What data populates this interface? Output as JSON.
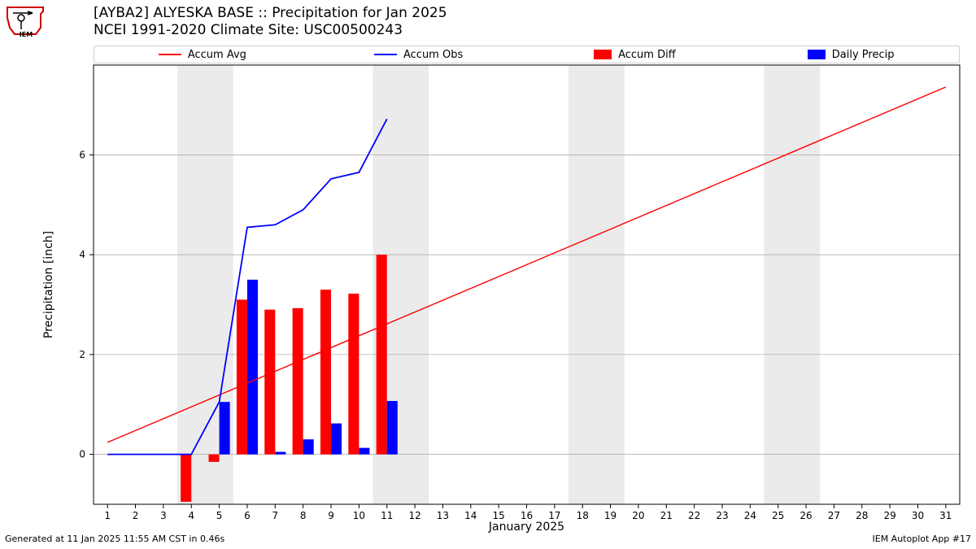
{
  "title_line1": "[AYBA2] ALYESKA BASE :: Precipitation for Jan 2025",
  "title_line2": "NCEI 1991-2020 Climate Site: USC00500243",
  "footer_left": "Generated at 11 Jan 2025 11:55 AM CST in 0.46s",
  "footer_right": "IEM Autoplot App #17",
  "ylabel": "Precipitation [inch]",
  "xlabel": "January 2025",
  "legend": {
    "accum_avg": "Accum Avg",
    "accum_obs": "Accum Obs",
    "accum_diff": "Accum Diff",
    "daily_precip": "Daily Precip"
  },
  "chart": {
    "type": "combo-bar-line",
    "plot_bg": "#ffffff",
    "weekend_bg": "#ebebeb",
    "grid_color": "#b0b0b0",
    "axis_color": "#000000",
    "text_color": "#000000",
    "tick_fontsize": 12,
    "label_fontsize": 14,
    "x": {
      "min": 0.5,
      "max": 31.5,
      "ticks": [
        1,
        2,
        3,
        4,
        5,
        6,
        7,
        8,
        9,
        10,
        11,
        12,
        13,
        14,
        15,
        16,
        17,
        18,
        19,
        20,
        21,
        22,
        23,
        24,
        25,
        26,
        27,
        28,
        29,
        30,
        31
      ]
    },
    "y": {
      "min": -1.0,
      "max": 7.8,
      "ticks": [
        0,
        2,
        4,
        6
      ]
    },
    "weekend_bands": [
      [
        3.5,
        5.5
      ],
      [
        10.5,
        12.5
      ],
      [
        17.5,
        19.5
      ],
      [
        24.5,
        26.5
      ]
    ],
    "accum_avg": {
      "color": "#ff0000",
      "width": 1.4,
      "points": [
        [
          1,
          0.24
        ],
        [
          31,
          7.36
        ]
      ]
    },
    "accum_obs": {
      "color": "#0000ff",
      "width": 1.8,
      "points": [
        [
          1,
          0.0
        ],
        [
          2,
          0.0
        ],
        [
          3,
          0.0
        ],
        [
          4,
          0.0
        ],
        [
          5,
          1.05
        ],
        [
          6,
          4.55
        ],
        [
          7,
          4.6
        ],
        [
          8,
          4.9
        ],
        [
          9,
          5.52
        ],
        [
          10,
          5.65
        ],
        [
          11,
          6.72
        ]
      ]
    },
    "bars": {
      "diff_color": "#ff0000",
      "precip_color": "#0000ff",
      "bar_width": 0.38,
      "days": [
        {
          "day": 4,
          "diff": -0.95,
          "precip": 0.0
        },
        {
          "day": 5,
          "diff": -0.15,
          "precip": 1.05
        },
        {
          "day": 6,
          "diff": 3.1,
          "precip": 3.5
        },
        {
          "day": 7,
          "diff": 2.9,
          "precip": 0.05
        },
        {
          "day": 8,
          "diff": 2.93,
          "precip": 0.3
        },
        {
          "day": 9,
          "diff": 3.3,
          "precip": 0.62
        },
        {
          "day": 10,
          "diff": 3.22,
          "precip": 0.13
        },
        {
          "day": 11,
          "diff": 4.0,
          "precip": 1.07
        }
      ]
    }
  }
}
